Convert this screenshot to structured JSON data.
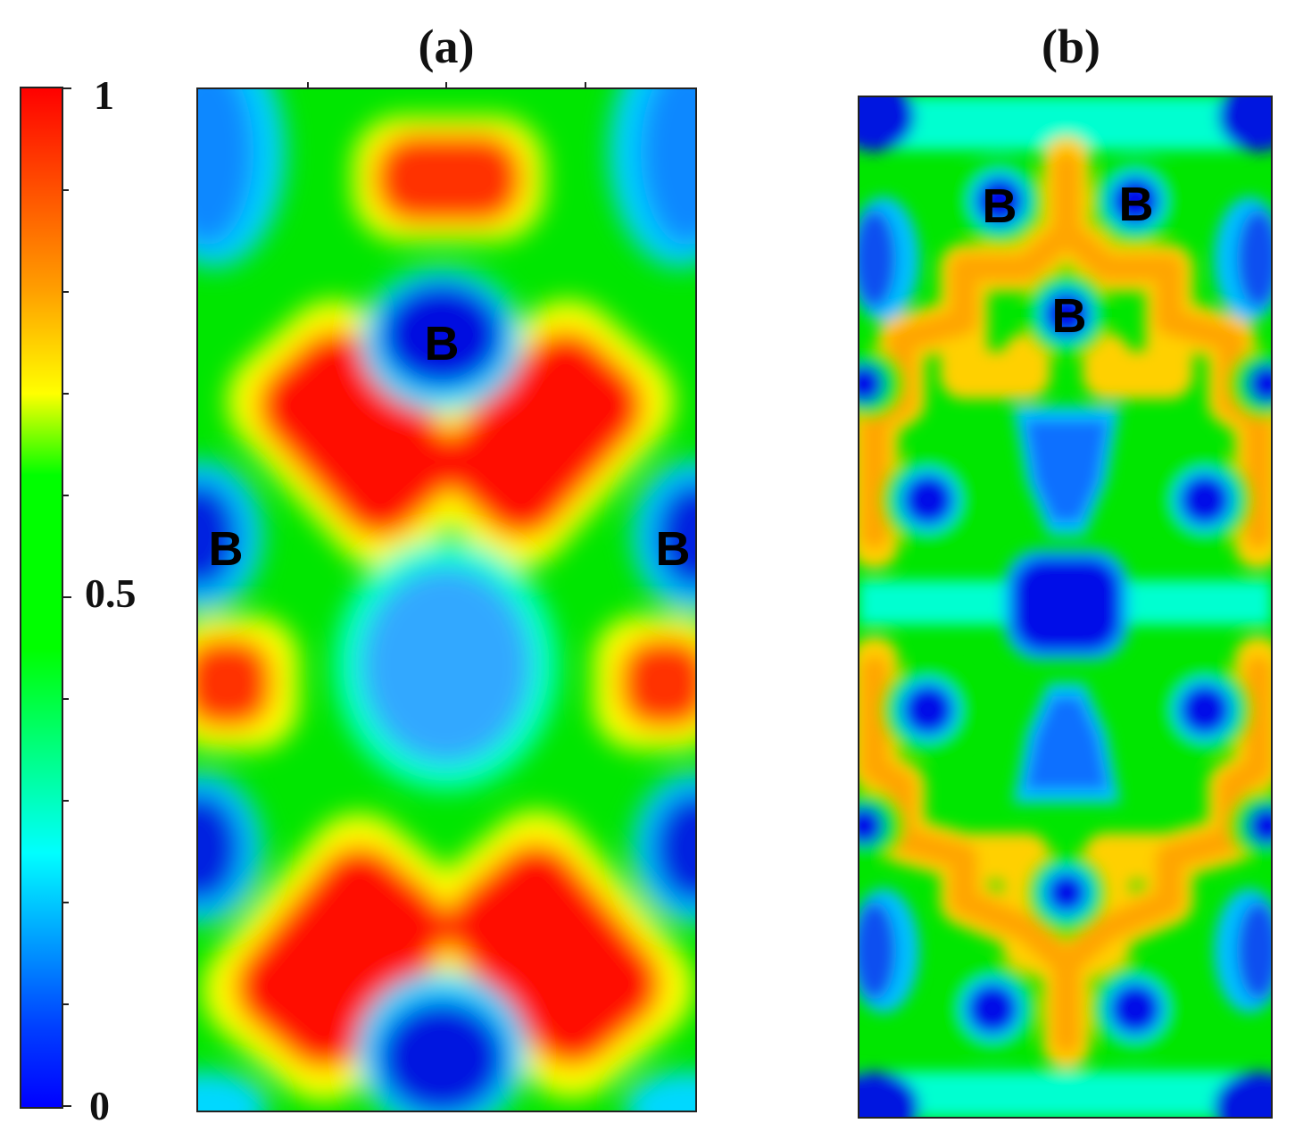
{
  "colorbar": {
    "min": 0,
    "max": 1,
    "tick_labels": [
      "0",
      "0.5",
      "1"
    ],
    "colormap": [
      "#0000ff",
      "#00ffff",
      "#00ff00",
      "#ffff00",
      "#ff0000"
    ]
  },
  "panels": [
    {
      "title": "(a)",
      "atom_labels": [
        "B",
        "B",
        "B"
      ]
    },
    {
      "title": "(b)",
      "atom_labels": [
        "B",
        "B",
        "B"
      ]
    }
  ],
  "chart_data": [
    {
      "type": "heatmap",
      "title": "(a)",
      "value_range": [
        0,
        1
      ],
      "colorbar_ticks": [
        0,
        0.5,
        1
      ],
      "annotations": [
        "B",
        "B",
        "B"
      ]
    },
    {
      "type": "heatmap",
      "title": "(b)",
      "value_range": [
        0,
        1
      ],
      "colorbar_ticks": [
        0,
        0.5,
        1
      ],
      "annotations": [
        "B",
        "B",
        "B"
      ]
    }
  ]
}
